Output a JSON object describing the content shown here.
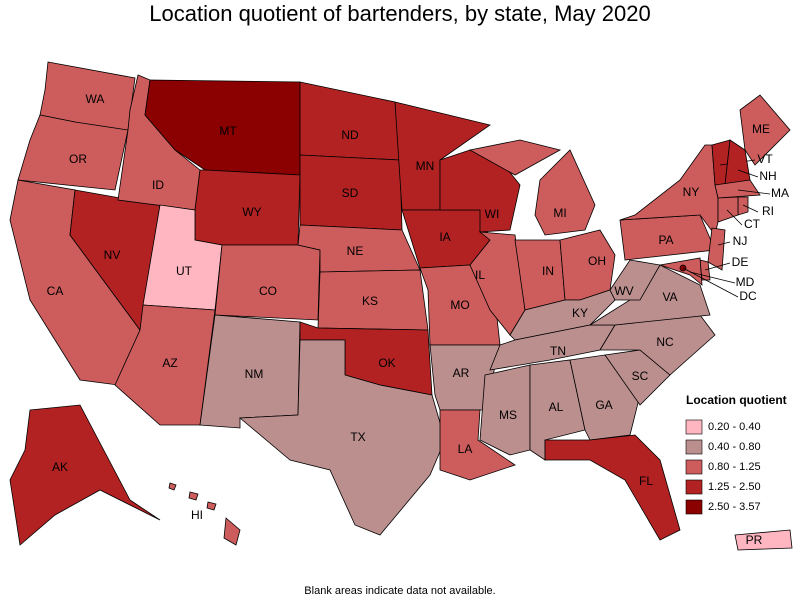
{
  "title": "Location quotient of bartenders, by state, May 2020",
  "states": [
    {
      "label": "WA",
      "color": "#cd5c5c"
    },
    {
      "label": "OR",
      "color": "#cd5c5c"
    },
    {
      "label": "CA",
      "color": "#cd5c5c"
    },
    {
      "label": "NV",
      "color": "#b22222"
    },
    {
      "label": "ID",
      "color": "#cd5c5c"
    },
    {
      "label": "MT",
      "color": "#8b0000"
    },
    {
      "label": "WY",
      "color": "#b22222"
    },
    {
      "label": "UT",
      "color": "#ffb6c1"
    },
    {
      "label": "AZ",
      "color": "#cd5c5c"
    },
    {
      "label": "CO",
      "color": "#cd5c5c"
    },
    {
      "label": "NM",
      "color": "#bc8f8f"
    },
    {
      "label": "ND",
      "color": "#b22222"
    },
    {
      "label": "SD",
      "color": "#b22222"
    },
    {
      "label": "NE",
      "color": "#cd5c5c"
    },
    {
      "label": "KS",
      "color": "#cd5c5c"
    },
    {
      "label": "OK",
      "color": "#b22222"
    },
    {
      "label": "TX",
      "color": "#bc8f8f"
    },
    {
      "label": "MN",
      "color": "#b22222"
    },
    {
      "label": "IA",
      "color": "#b22222"
    },
    {
      "label": "MO",
      "color": "#cd5c5c"
    },
    {
      "label": "AR",
      "color": "#bc8f8f"
    },
    {
      "label": "LA",
      "color": "#cd5c5c"
    },
    {
      "label": "WI",
      "color": "#b22222"
    },
    {
      "label": "IL",
      "color": "#cd5c5c"
    },
    {
      "label": "MI",
      "color": "#cd5c5c"
    },
    {
      "label": "IN",
      "color": "#cd5c5c"
    },
    {
      "label": "OH",
      "color": "#cd5c5c"
    },
    {
      "label": "KY",
      "color": "#bc8f8f"
    },
    {
      "label": "TN",
      "color": "#bc8f8f"
    },
    {
      "label": "MS",
      "color": "#bc8f8f"
    },
    {
      "label": "AL",
      "color": "#bc8f8f"
    },
    {
      "label": "GA",
      "color": "#bc8f8f"
    },
    {
      "label": "FL",
      "color": "#b22222"
    },
    {
      "label": "SC",
      "color": "#bc8f8f"
    },
    {
      "label": "NC",
      "color": "#bc8f8f"
    },
    {
      "label": "VA",
      "color": "#bc8f8f"
    },
    {
      "label": "WV",
      "color": "#bc8f8f"
    },
    {
      "label": "PA",
      "color": "#cd5c5c"
    },
    {
      "label": "NY",
      "color": "#cd5c5c"
    },
    {
      "label": "ME",
      "color": "#cd5c5c"
    },
    {
      "label": "VT",
      "color": "#b22222"
    },
    {
      "label": "NH",
      "color": "#b22222"
    },
    {
      "label": "MA",
      "color": "#cd5c5c"
    },
    {
      "label": "RI",
      "color": "#cd5c5c"
    },
    {
      "label": "CT",
      "color": "#cd5c5c"
    },
    {
      "label": "NJ",
      "color": "#cd5c5c"
    },
    {
      "label": "DE",
      "color": "#cd5c5c"
    },
    {
      "label": "MD",
      "color": "#cd5c5c"
    },
    {
      "label": "DC",
      "color": "#8b0000"
    },
    {
      "label": "AK",
      "color": "#b22222"
    },
    {
      "label": "HI",
      "color": "#cd5c5c"
    },
    {
      "label": "PR",
      "color": "#ffb6c1"
    }
  ],
  "legend": {
    "title": "Location quotient",
    "items": [
      {
        "label": "0.20 - 0.40",
        "color": "#ffb6c1"
      },
      {
        "label": "0.40 - 0.80",
        "color": "#bc8f8f"
      },
      {
        "label": "0.80 - 1.25",
        "color": "#cd5c5c"
      },
      {
        "label": "1.25 - 2.50",
        "color": "#b22222"
      },
      {
        "label": "2.50 - 3.57",
        "color": "#8b0000"
      }
    ]
  },
  "note": "Blank areas indicate data not available."
}
